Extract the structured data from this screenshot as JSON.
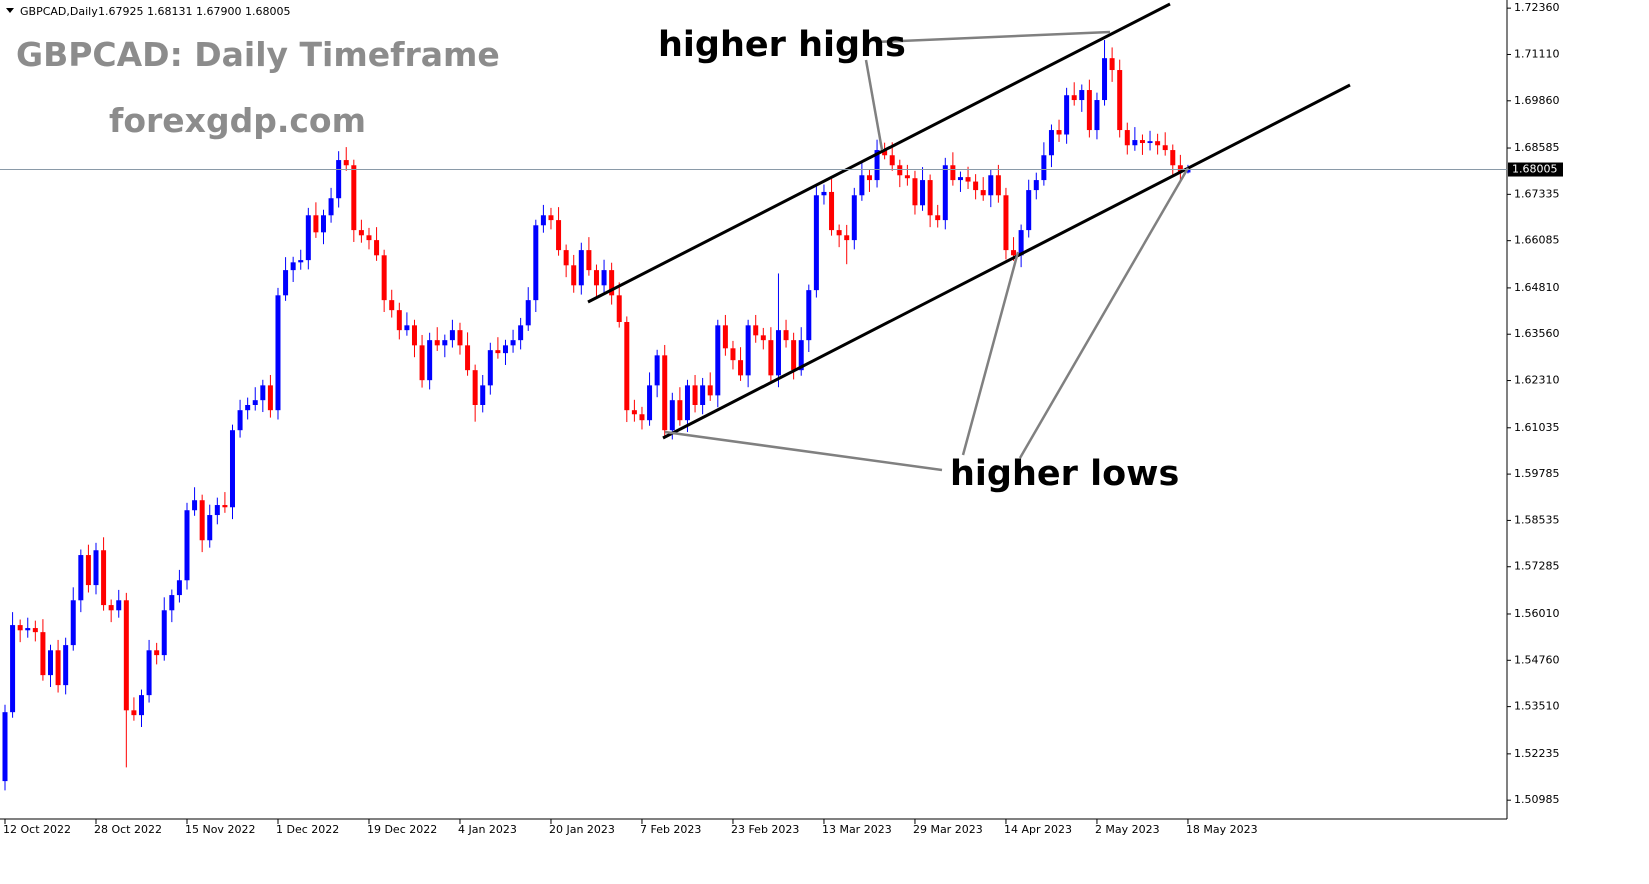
{
  "header": {
    "symbol": "GBPCAD,Daily",
    "ohlc": "1.67925 1.68131 1.67900 1.68005"
  },
  "chart_data": {
    "type": "candlestick",
    "title": "GBPCAD: Daily Timeframe",
    "subtitle": "forexgdp.com",
    "annotations": [
      "higher highs",
      "higher lows"
    ],
    "up_color": "#0000ff",
    "down_color": "#ff0000",
    "ylim": [
      1.5045,
      1.7258
    ],
    "yticks": [
      {
        "value": 1.7236,
        "label": "1.72360"
      },
      {
        "value": 1.7111,
        "label": "1.71110"
      },
      {
        "value": 1.6986,
        "label": "1.69860"
      },
      {
        "value": 1.68585,
        "label": "1.68585"
      },
      {
        "value": 1.67335,
        "label": "1.67335"
      },
      {
        "value": 1.66085,
        "label": "1.66085"
      },
      {
        "value": 1.6481,
        "label": "1.64810"
      },
      {
        "value": 1.6356,
        "label": "1.63560"
      },
      {
        "value": 1.6231,
        "label": "1.62310"
      },
      {
        "value": 1.61035,
        "label": "1.61035"
      },
      {
        "value": 1.59785,
        "label": "1.59785"
      },
      {
        "value": 1.58535,
        "label": "1.58535"
      },
      {
        "value": 1.57285,
        "label": "1.57285"
      },
      {
        "value": 1.5601,
        "label": "1.56010"
      },
      {
        "value": 1.5476,
        "label": "1.54760"
      },
      {
        "value": 1.5351,
        "label": "1.53510"
      },
      {
        "value": 1.52235,
        "label": "1.52235"
      },
      {
        "value": 1.50985,
        "label": "1.50985"
      }
    ],
    "price_line": {
      "value": 1.68005,
      "label": "1.68005"
    },
    "categories": [
      "12 Oct 2022",
      null,
      null,
      null,
      null,
      null,
      null,
      null,
      null,
      null,
      null,
      null,
      "28 Oct 2022",
      null,
      null,
      null,
      null,
      null,
      null,
      null,
      null,
      null,
      null,
      null,
      "15 Nov 2022",
      null,
      null,
      null,
      null,
      null,
      null,
      null,
      null,
      null,
      null,
      null,
      "1 Dec 2022",
      null,
      null,
      null,
      null,
      null,
      null,
      null,
      null,
      null,
      null,
      null,
      "19 Dec 2022",
      null,
      null,
      null,
      null,
      null,
      null,
      null,
      null,
      null,
      null,
      null,
      "4 Jan 2023",
      null,
      null,
      null,
      null,
      null,
      null,
      null,
      null,
      null,
      null,
      null,
      "20 Jan 2023",
      null,
      null,
      null,
      null,
      null,
      null,
      null,
      null,
      null,
      null,
      null,
      "7 Feb 2023",
      null,
      null,
      null,
      null,
      null,
      null,
      null,
      null,
      null,
      null,
      null,
      "23 Feb 2023",
      null,
      null,
      null,
      null,
      null,
      null,
      null,
      null,
      null,
      null,
      null,
      "13 Mar 2023",
      null,
      null,
      null,
      null,
      null,
      null,
      null,
      null,
      null,
      null,
      null,
      "29 Mar 2023",
      null,
      null,
      null,
      null,
      null,
      null,
      null,
      null,
      null,
      null,
      null,
      "14 Apr 2023",
      null,
      null,
      null,
      null,
      null,
      null,
      null,
      null,
      null,
      null,
      null,
      "2 May 2023",
      null,
      null,
      null,
      null,
      null,
      null,
      null,
      null,
      null,
      null,
      null,
      "18 May 2023"
    ],
    "open": [
      1.515,
      1.5336,
      1.5571,
      1.5557,
      1.5563,
      1.5552,
      1.5436,
      1.5503,
      1.5409,
      1.5517,
      1.5638,
      1.576,
      1.5679,
      1.5773,
      1.5625,
      1.5611,
      1.5638,
      1.5341,
      1.5328,
      1.5382,
      1.5503,
      1.549,
      1.5611,
      1.5652,
      1.5692,
      1.5881,
      1.5908,
      1.58,
      1.5868,
      1.5895,
      1.5889,
      1.6097,
      1.6151,
      1.6165,
      1.6178,
      1.6218,
      1.6151,
      1.6461,
      1.6529,
      1.655,
      1.6556,
      1.6677,
      1.6631,
      1.6677,
      1.6723,
      1.6826,
      1.6812,
      1.6637,
      1.6623,
      1.661,
      1.6569,
      1.6448,
      1.6421,
      1.6367,
      1.638,
      1.6326,
      1.6232,
      1.634,
      1.6326,
      1.634,
      1.6367,
      1.6326,
      1.6259,
      1.6165,
      1.6218,
      1.6313,
      1.6305,
      1.6326,
      1.634,
      1.638,
      1.6448,
      1.665,
      1.6677,
      1.6664,
      1.6583,
      1.6542,
      1.6488,
      1.6583,
      1.6529,
      1.6488,
      1.6529,
      1.6461,
      1.6389,
      1.6151,
      1.614,
      1.6124,
      1.6218,
      1.6299,
      1.6097,
      1.6178,
      1.6124,
      1.6218,
      1.6165,
      1.6218,
      1.6191,
      1.638,
      1.6318,
      1.6286,
      1.6245,
      1.638,
      1.6353,
      1.634,
      1.6245,
      1.6367,
      1.634,
      1.6259,
      1.634,
      1.6475,
      1.6731,
      1.674,
      1.6637,
      1.6623,
      1.661,
      1.6731,
      1.6785,
      1.6772,
      1.6853,
      1.6839,
      1.6812,
      1.6785,
      1.6777,
      1.6704,
      1.6772,
      1.6677,
      1.6664,
      1.6812,
      1.6772,
      1.678,
      1.6768,
      1.6745,
      1.6731,
      1.6785,
      1.6731,
      1.6583,
      1.6569,
      1.6637,
      1.6745,
      1.6772,
      1.6839,
      1.6907,
      1.6895,
      1.7001,
      1.6988,
      1.7015,
      1.6907,
      1.6988,
      1.7101,
      1.7069,
      1.6907,
      1.6866,
      1.688,
      1.6872,
      1.6877,
      1.6866,
      1.6853,
      1.6812,
      1.67925
    ],
    "high": [
      1.5356,
      1.5606,
      1.5586,
      1.5591,
      1.5583,
      1.5587,
      1.5518,
      1.5531,
      1.5537,
      1.5673,
      1.5775,
      1.5788,
      1.5793,
      1.5808,
      1.564,
      1.5666,
      1.5658,
      1.5376,
      1.5397,
      1.5531,
      1.5523,
      1.5646,
      1.5667,
      1.572,
      1.5901,
      1.5943,
      1.5923,
      1.5896,
      1.5915,
      1.593,
      1.6112,
      1.6179,
      1.6185,
      1.6213,
      1.6233,
      1.6246,
      1.6481,
      1.6564,
      1.6565,
      1.6584,
      1.6697,
      1.6712,
      1.6692,
      1.6751,
      1.685,
      1.6861,
      1.6827,
      1.6665,
      1.6643,
      1.6645,
      1.6584,
      1.6476,
      1.6441,
      1.6415,
      1.6395,
      1.6354,
      1.636,
      1.6375,
      1.6355,
      1.6395,
      1.6387,
      1.6361,
      1.6274,
      1.6246,
      1.6333,
      1.6348,
      1.6341,
      1.6368,
      1.64,
      1.6483,
      1.6665,
      1.6705,
      1.6697,
      1.6699,
      1.6598,
      1.657,
      1.6603,
      1.6618,
      1.6544,
      1.6557,
      1.6549,
      1.6496,
      1.6404,
      1.6179,
      1.616,
      1.6253,
      1.6314,
      1.6327,
      1.6198,
      1.6213,
      1.6233,
      1.6246,
      1.6238,
      1.6253,
      1.6395,
      1.6408,
      1.6338,
      1.6321,
      1.6395,
      1.6408,
      1.6373,
      1.6375,
      1.652,
      1.6395,
      1.636,
      1.6375,
      1.649,
      1.6759,
      1.676,
      1.6775,
      1.6652,
      1.6651,
      1.6751,
      1.682,
      1.68,
      1.6881,
      1.6873,
      1.6874,
      1.6827,
      1.6813,
      1.6797,
      1.6807,
      1.6787,
      1.6705,
      1.6832,
      1.6847,
      1.6795,
      1.6808,
      1.6788,
      1.678,
      1.68,
      1.6813,
      1.6751,
      1.6618,
      1.6652,
      1.6773,
      1.6792,
      1.6874,
      1.6922,
      1.6935,
      1.7021,
      1.7036,
      1.703,
      1.7043,
      1.7008,
      1.715,
      1.713,
      1.7097,
      1.6927,
      1.6915,
      1.6895,
      1.6905,
      1.6897,
      1.6901,
      1.6868,
      1.684,
      1.68131
    ],
    "low": [
      1.5125,
      1.5321,
      1.5525,
      1.5537,
      1.5527,
      1.5421,
      1.5404,
      1.5389,
      1.5384,
      1.5502,
      1.5606,
      1.5659,
      1.5654,
      1.561,
      1.5579,
      1.5591,
      1.5187,
      1.5313,
      1.5296,
      1.5362,
      1.5465,
      1.5475,
      1.5579,
      1.5632,
      1.5667,
      1.5866,
      1.5768,
      1.578,
      1.5843,
      1.5874,
      1.5857,
      1.6077,
      1.6126,
      1.615,
      1.6146,
      1.6131,
      1.6126,
      1.6446,
      1.6497,
      1.653,
      1.6531,
      1.6616,
      1.6599,
      1.6657,
      1.6698,
      1.6797,
      1.6605,
      1.6603,
      1.6585,
      1.6554,
      1.6416,
      1.6401,
      1.6342,
      1.6352,
      1.6294,
      1.6212,
      1.6207,
      1.6311,
      1.6294,
      1.632,
      1.6301,
      1.6244,
      1.612,
      1.6145,
      1.6193,
      1.629,
      1.6273,
      1.6306,
      1.6315,
      1.6365,
      1.6416,
      1.663,
      1.6639,
      1.6568,
      1.651,
      1.6468,
      1.6463,
      1.6514,
      1.6456,
      1.6468,
      1.6436,
      1.6374,
      1.6119,
      1.612,
      1.6099,
      1.6109,
      1.6186,
      1.6077,
      1.6072,
      1.6109,
      1.6092,
      1.6145,
      1.614,
      1.6176,
      1.6159,
      1.6298,
      1.6261,
      1.623,
      1.6213,
      1.6333,
      1.6315,
      1.623,
      1.6213,
      1.632,
      1.6234,
      1.6244,
      1.6308,
      1.6455,
      1.6706,
      1.6622,
      1.6591,
      1.6545,
      1.6585,
      1.6716,
      1.674,
      1.6752,
      1.6828,
      1.6797,
      1.6753,
      1.6757,
      1.6679,
      1.6689,
      1.6645,
      1.6644,
      1.6639,
      1.6757,
      1.674,
      1.6748,
      1.672,
      1.6716,
      1.6699,
      1.6711,
      1.6558,
      1.6554,
      1.6537,
      1.6617,
      1.672,
      1.6757,
      1.6807,
      1.6875,
      1.687,
      1.6973,
      1.6956,
      1.6887,
      1.6882,
      1.6973,
      1.7037,
      1.6887,
      1.6841,
      1.6851,
      1.684,
      1.6852,
      1.6841,
      1.6838,
      1.678,
      1.6773,
      1.679
    ],
    "close": [
      1.5336,
      1.5571,
      1.5557,
      1.5563,
      1.5552,
      1.5436,
      1.5503,
      1.5409,
      1.5517,
      1.5638,
      1.576,
      1.5679,
      1.5773,
      1.5625,
      1.5611,
      1.5638,
      1.5341,
      1.5328,
      1.5382,
      1.5503,
      1.549,
      1.5611,
      1.5652,
      1.5692,
      1.5881,
      1.5908,
      1.58,
      1.5868,
      1.5895,
      1.5889,
      1.6097,
      1.6151,
      1.6165,
      1.6178,
      1.6218,
      1.6151,
      1.6461,
      1.6529,
      1.655,
      1.6556,
      1.6677,
      1.6631,
      1.6677,
      1.6723,
      1.6826,
      1.6812,
      1.6637,
      1.6623,
      1.661,
      1.6569,
      1.6448,
      1.6421,
      1.6367,
      1.638,
      1.6326,
      1.6232,
      1.634,
      1.6326,
      1.634,
      1.6367,
      1.6326,
      1.6259,
      1.6165,
      1.6218,
      1.6313,
      1.6305,
      1.6326,
      1.634,
      1.638,
      1.6448,
      1.665,
      1.6677,
      1.6664,
      1.6583,
      1.6542,
      1.6488,
      1.6583,
      1.6529,
      1.6488,
      1.6529,
      1.6461,
      1.6389,
      1.6151,
      1.614,
      1.6124,
      1.6218,
      1.6299,
      1.6097,
      1.6178,
      1.6124,
      1.6218,
      1.6165,
      1.6218,
      1.6191,
      1.638,
      1.6318,
      1.6286,
      1.6245,
      1.638,
      1.6353,
      1.634,
      1.6245,
      1.6367,
      1.634,
      1.6259,
      1.634,
      1.6475,
      1.6731,
      1.674,
      1.6637,
      1.6623,
      1.661,
      1.6731,
      1.6785,
      1.6772,
      1.6853,
      1.6839,
      1.6812,
      1.6785,
      1.6777,
      1.6704,
      1.6772,
      1.6677,
      1.6664,
      1.6812,
      1.6772,
      1.678,
      1.6768,
      1.6745,
      1.6731,
      1.6785,
      1.6731,
      1.6583,
      1.6569,
      1.6637,
      1.6745,
      1.6772,
      1.6839,
      1.6907,
      1.6895,
      1.7001,
      1.6988,
      1.7015,
      1.6907,
      1.6988,
      1.7101,
      1.7069,
      1.6907,
      1.6866,
      1.688,
      1.6872,
      1.6877,
      1.6866,
      1.6853,
      1.6812,
      1.6793,
      1.68005
    ]
  }
}
